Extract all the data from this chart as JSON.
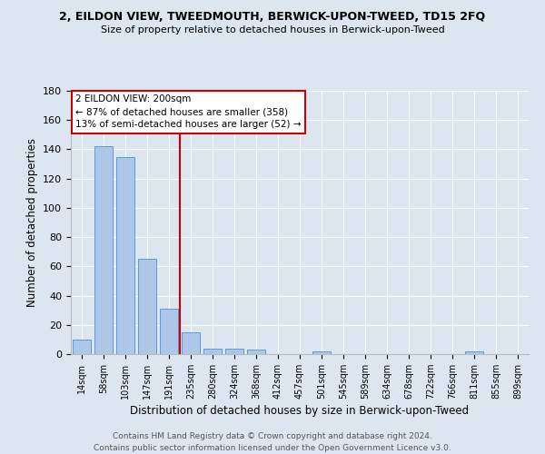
{
  "title": "2, EILDON VIEW, TWEEDMOUTH, BERWICK-UPON-TWEED, TD15 2FQ",
  "subtitle": "Size of property relative to detached houses in Berwick-upon-Tweed",
  "xlabel": "Distribution of detached houses by size in Berwick-upon-Tweed",
  "ylabel": "Number of detached properties",
  "footer_line1": "Contains HM Land Registry data © Crown copyright and database right 2024.",
  "footer_line2": "Contains public sector information licensed under the Open Government Licence v3.0.",
  "categories": [
    "14sqm",
    "58sqm",
    "103sqm",
    "147sqm",
    "191sqm",
    "235sqm",
    "280sqm",
    "324sqm",
    "368sqm",
    "412sqm",
    "457sqm",
    "501sqm",
    "545sqm",
    "589sqm",
    "634sqm",
    "678sqm",
    "722sqm",
    "766sqm",
    "811sqm",
    "855sqm",
    "899sqm"
  ],
  "values": [
    10,
    142,
    135,
    65,
    31,
    15,
    4,
    4,
    3,
    0,
    0,
    2,
    0,
    0,
    0,
    0,
    0,
    0,
    2,
    0,
    0
  ],
  "bar_color": "#aec6e8",
  "bar_edge_color": "#5b9bd5",
  "background_color": "#dce6f1",
  "ylim": [
    0,
    180
  ],
  "yticks": [
    0,
    20,
    40,
    60,
    80,
    100,
    120,
    140,
    160,
    180
  ],
  "red_line_x": 4.5,
  "annotation_line1": "2 EILDON VIEW: 200sqm",
  "annotation_line2": "← 87% of detached houses are smaller (358)",
  "annotation_line3": "13% of semi-detached houses are larger (52) →",
  "annotation_box_color": "#ffffff",
  "annotation_box_edge_color": "#cc0000",
  "red_line_color": "#cc0000"
}
